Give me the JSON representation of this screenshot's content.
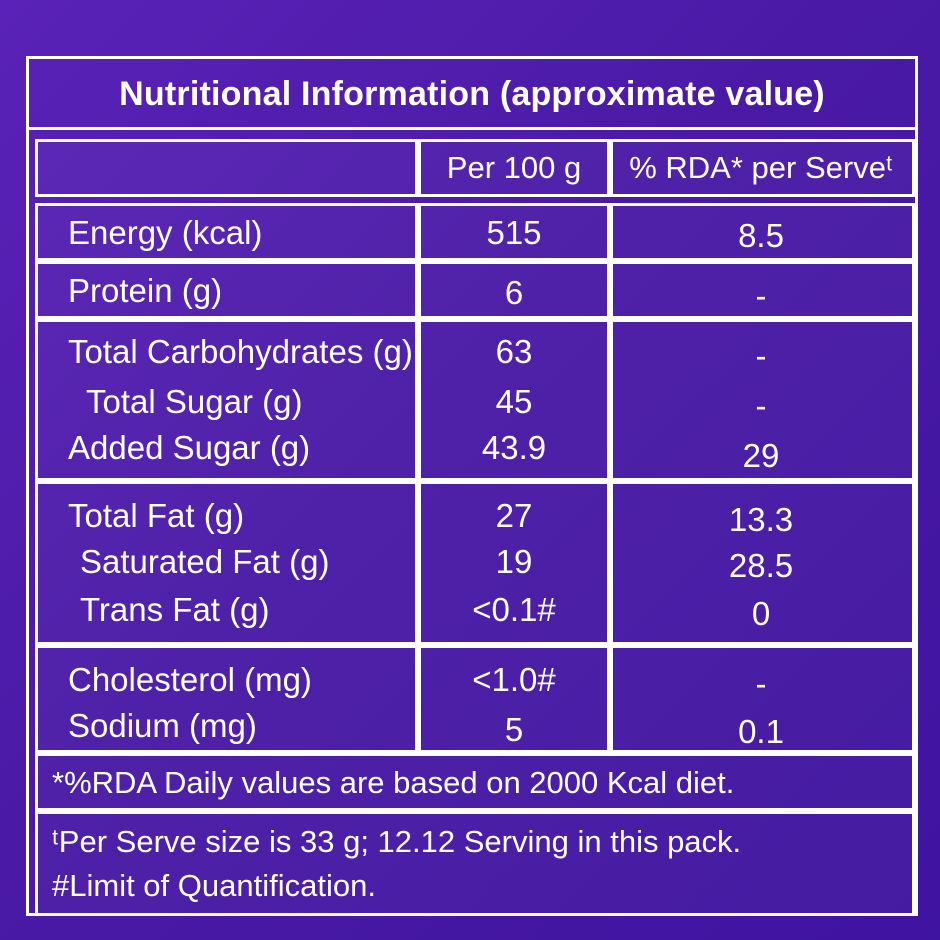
{
  "title": "Nutritional Information (approximate value)",
  "header": {
    "per100": "Per 100 g",
    "rda": "% RDA* per Serveᵗ"
  },
  "rows": {
    "energy": {
      "label": "Energy (kcal)",
      "per100": "515",
      "rda": "8.5"
    },
    "protein": {
      "label": "Protein (g)",
      "per100": "6",
      "rda": "-"
    },
    "carbs": {
      "label": "Total Carbohydrates (g)",
      "per100": "63",
      "rda": "-"
    },
    "sugar": {
      "label": "Total Sugar (g)",
      "per100": "45",
      "rda": "-"
    },
    "added_sugar": {
      "label": "Added Sugar (g)",
      "per100": "43.9",
      "rda": "29"
    },
    "fat": {
      "label": "Total Fat (g)",
      "per100": "27",
      "rda": "13.3"
    },
    "sat_fat": {
      "label": "Saturated Fat (g)",
      "per100": "19",
      "rda": "28.5"
    },
    "trans_fat": {
      "label": "Trans Fat (g)",
      "per100": "<0.1#",
      "rda": "0"
    },
    "cholesterol": {
      "label": "Cholesterol (mg)",
      "per100": "<1.0#",
      "rda": "-"
    },
    "sodium": {
      "label": "Sodium (mg)",
      "per100": "5",
      "rda": "0.1"
    }
  },
  "notes": {
    "rda_note": "*%RDA Daily values are based on 2000 Kcal diet.",
    "serve_note": "ᵗPer Serve size is 33 g; 12.12 Serving in this pack.",
    "loq_note": "#Limit of Quantification."
  },
  "colors": {
    "background": "#4b1aa8",
    "border": "#ffffff",
    "text": "#ffffff"
  }
}
